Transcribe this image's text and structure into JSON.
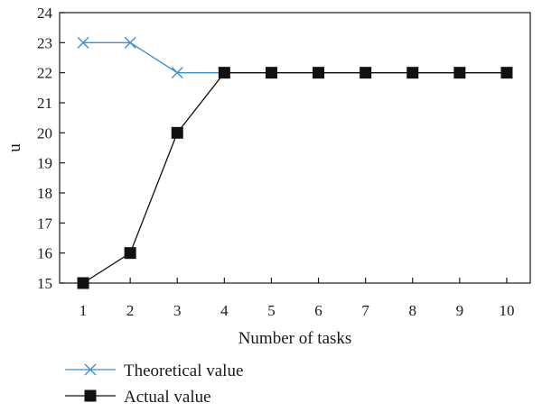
{
  "chart_data": {
    "type": "line",
    "title": "",
    "xlabel": "Number of tasks",
    "ylabel": "u",
    "x": [
      1,
      2,
      3,
      4,
      5,
      6,
      7,
      8,
      9,
      10
    ],
    "xticks": [
      "1",
      "2",
      "3",
      "4",
      "5",
      "6",
      "7",
      "8",
      "9",
      "10"
    ],
    "yticks": [
      "15",
      "16",
      "17",
      "18",
      "19",
      "20",
      "21",
      "22",
      "23",
      "24"
    ],
    "xlim": [
      0.5,
      10.5
    ],
    "ylim": [
      15,
      24
    ],
    "grid": false,
    "legend_position": "bottom-left",
    "series": [
      {
        "name": "Theoretical value",
        "marker": "x",
        "color": "#3a8fd6",
        "values": [
          23,
          23,
          22,
          22,
          22,
          22,
          22,
          22,
          22,
          22
        ]
      },
      {
        "name": "Actual value",
        "marker": "square",
        "color": "#111111",
        "values": [
          15,
          16,
          20,
          22,
          22,
          22,
          22,
          22,
          22,
          22
        ]
      }
    ]
  }
}
